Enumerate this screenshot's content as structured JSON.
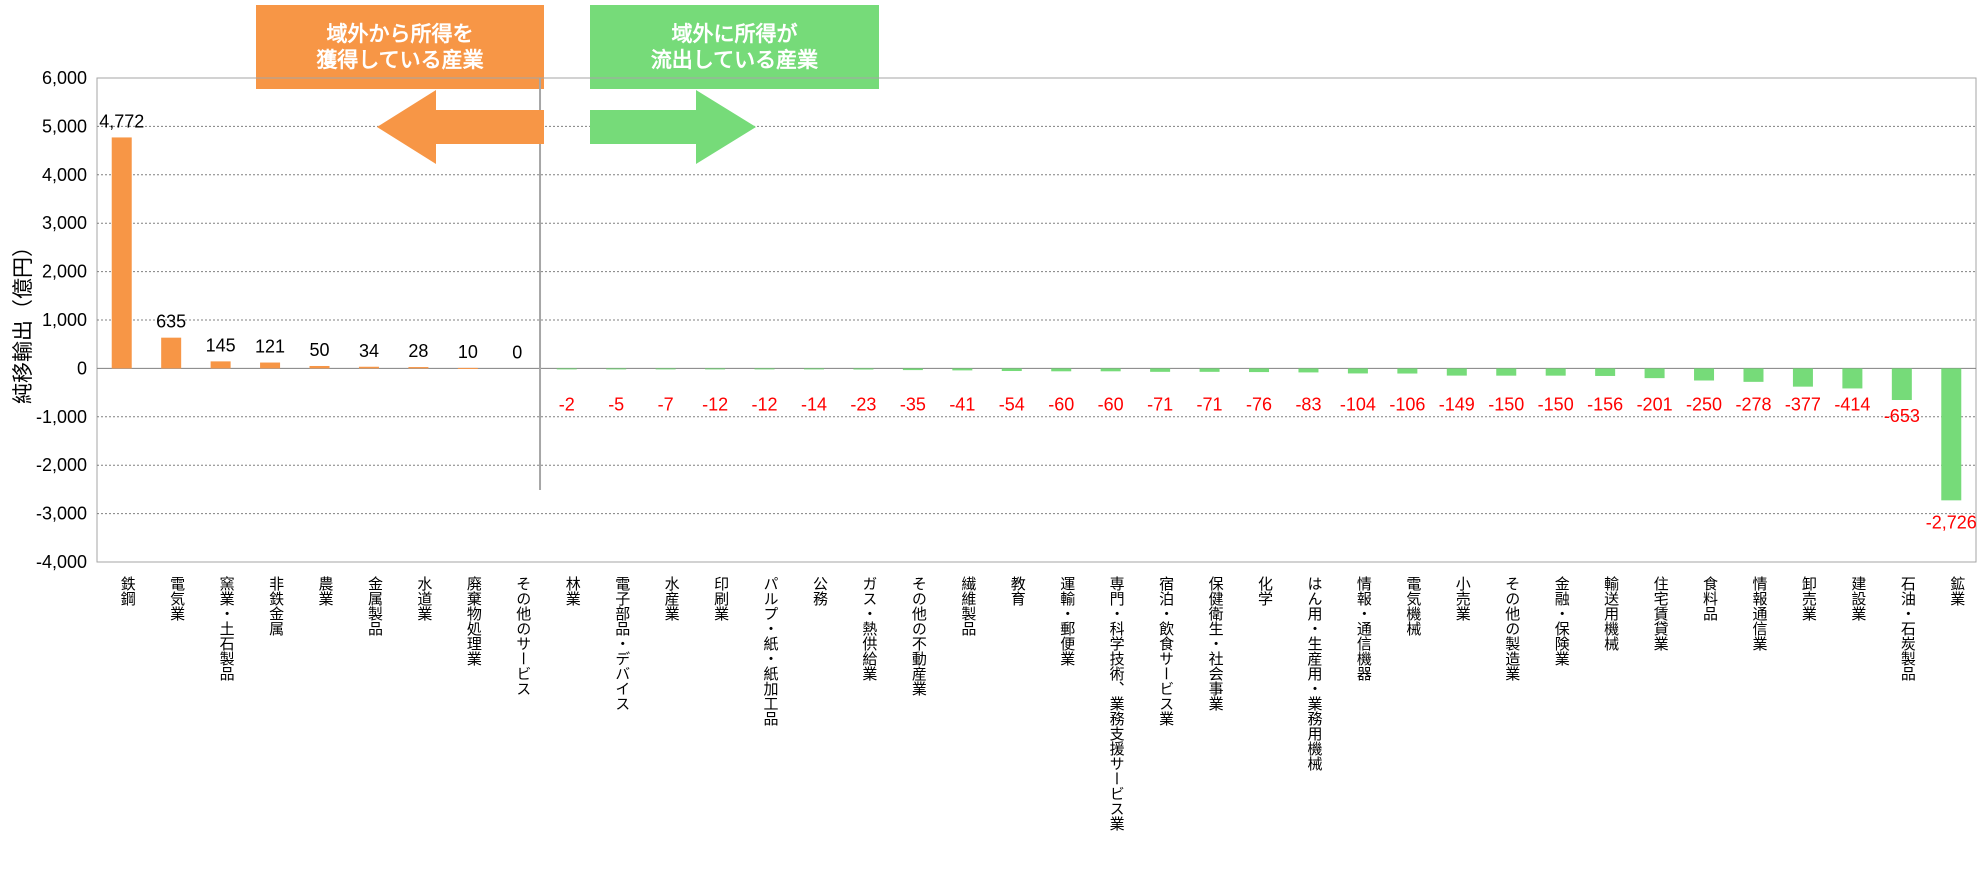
{
  "banners": {
    "left": {
      "line1": "域外から所得を",
      "line2": "獲得している産業",
      "color": "#F79646"
    },
    "right": {
      "line1": "域外に所得が",
      "line2": "流出している産業",
      "color": "#76DB79"
    }
  },
  "colors": {
    "positive_bar": "#F79646",
    "negative_bar": "#76DB79",
    "negative_label": "#FF0000",
    "positive_label": "#000000"
  },
  "chart_data": {
    "type": "bar",
    "ylabel": "純移輸出（億円）",
    "xlabel": "",
    "ylim": [
      -4000,
      6000
    ],
    "yticks": [
      6000,
      5000,
      4000,
      3000,
      2000,
      1000,
      0,
      -1000,
      -2000,
      -3000,
      -4000
    ],
    "ytick_labels": [
      "6,000",
      "5,000",
      "4,000",
      "3,000",
      "2,000",
      "1,000",
      "0",
      "-1,000",
      "-2,000",
      "-3,000",
      "-4,000"
    ],
    "grid": true,
    "categories": [
      "鉄鋼",
      "電気業",
      "窯業・土石製品",
      "非鉄金属",
      "農業",
      "金属製品",
      "水道業",
      "廃棄物処理業",
      "その他のサービス",
      "林業",
      "電子部品・デバイス",
      "水産業",
      "印刷業",
      "パルプ・紙・紙加工品",
      "公務",
      "ガス・熱供給業",
      "その他の不動産業",
      "繊維製品",
      "教育",
      "運輸・郵便業",
      "専門・科学技術、業務支援サービス業",
      "宿泊・飲食サービス業",
      "保健衛生・社会事業",
      "化学",
      "はん用・生産用・業務用機械",
      "情報・通信機器",
      "電気機械",
      "小売業",
      "その他の製造業",
      "金融・保険業",
      "輸送用機械",
      "住宅賃貸業",
      "食料品",
      "情報通信業",
      "卸売業",
      "建設業",
      "石油・石炭製品",
      "鉱業"
    ],
    "values": [
      4772,
      635,
      145,
      121,
      50,
      34,
      28,
      10,
      0,
      -2,
      -5,
      -7,
      -12,
      -12,
      -14,
      -23,
      -35,
      -41,
      -54,
      -60,
      -60,
      -71,
      -71,
      -76,
      -83,
      -104,
      -106,
      -149,
      -150,
      -150,
      -156,
      -201,
      -250,
      -278,
      -377,
      -414,
      -653,
      -2726
    ],
    "value_labels": [
      "4,772",
      "635",
      "145",
      "121",
      "50",
      "34",
      "28",
      "10",
      "0",
      "-2",
      "-5",
      "-7",
      "-12",
      "-12",
      "-14",
      "-23",
      "-35",
      "-41",
      "-54",
      "-60",
      "-60",
      "-71",
      "-71",
      "-76",
      "-83",
      "-104",
      "-106",
      "-149",
      "-150",
      "-150",
      "-156",
      "-201",
      "-250",
      "-278",
      "-377",
      "-414",
      "-653",
      "-2,726"
    ]
  }
}
